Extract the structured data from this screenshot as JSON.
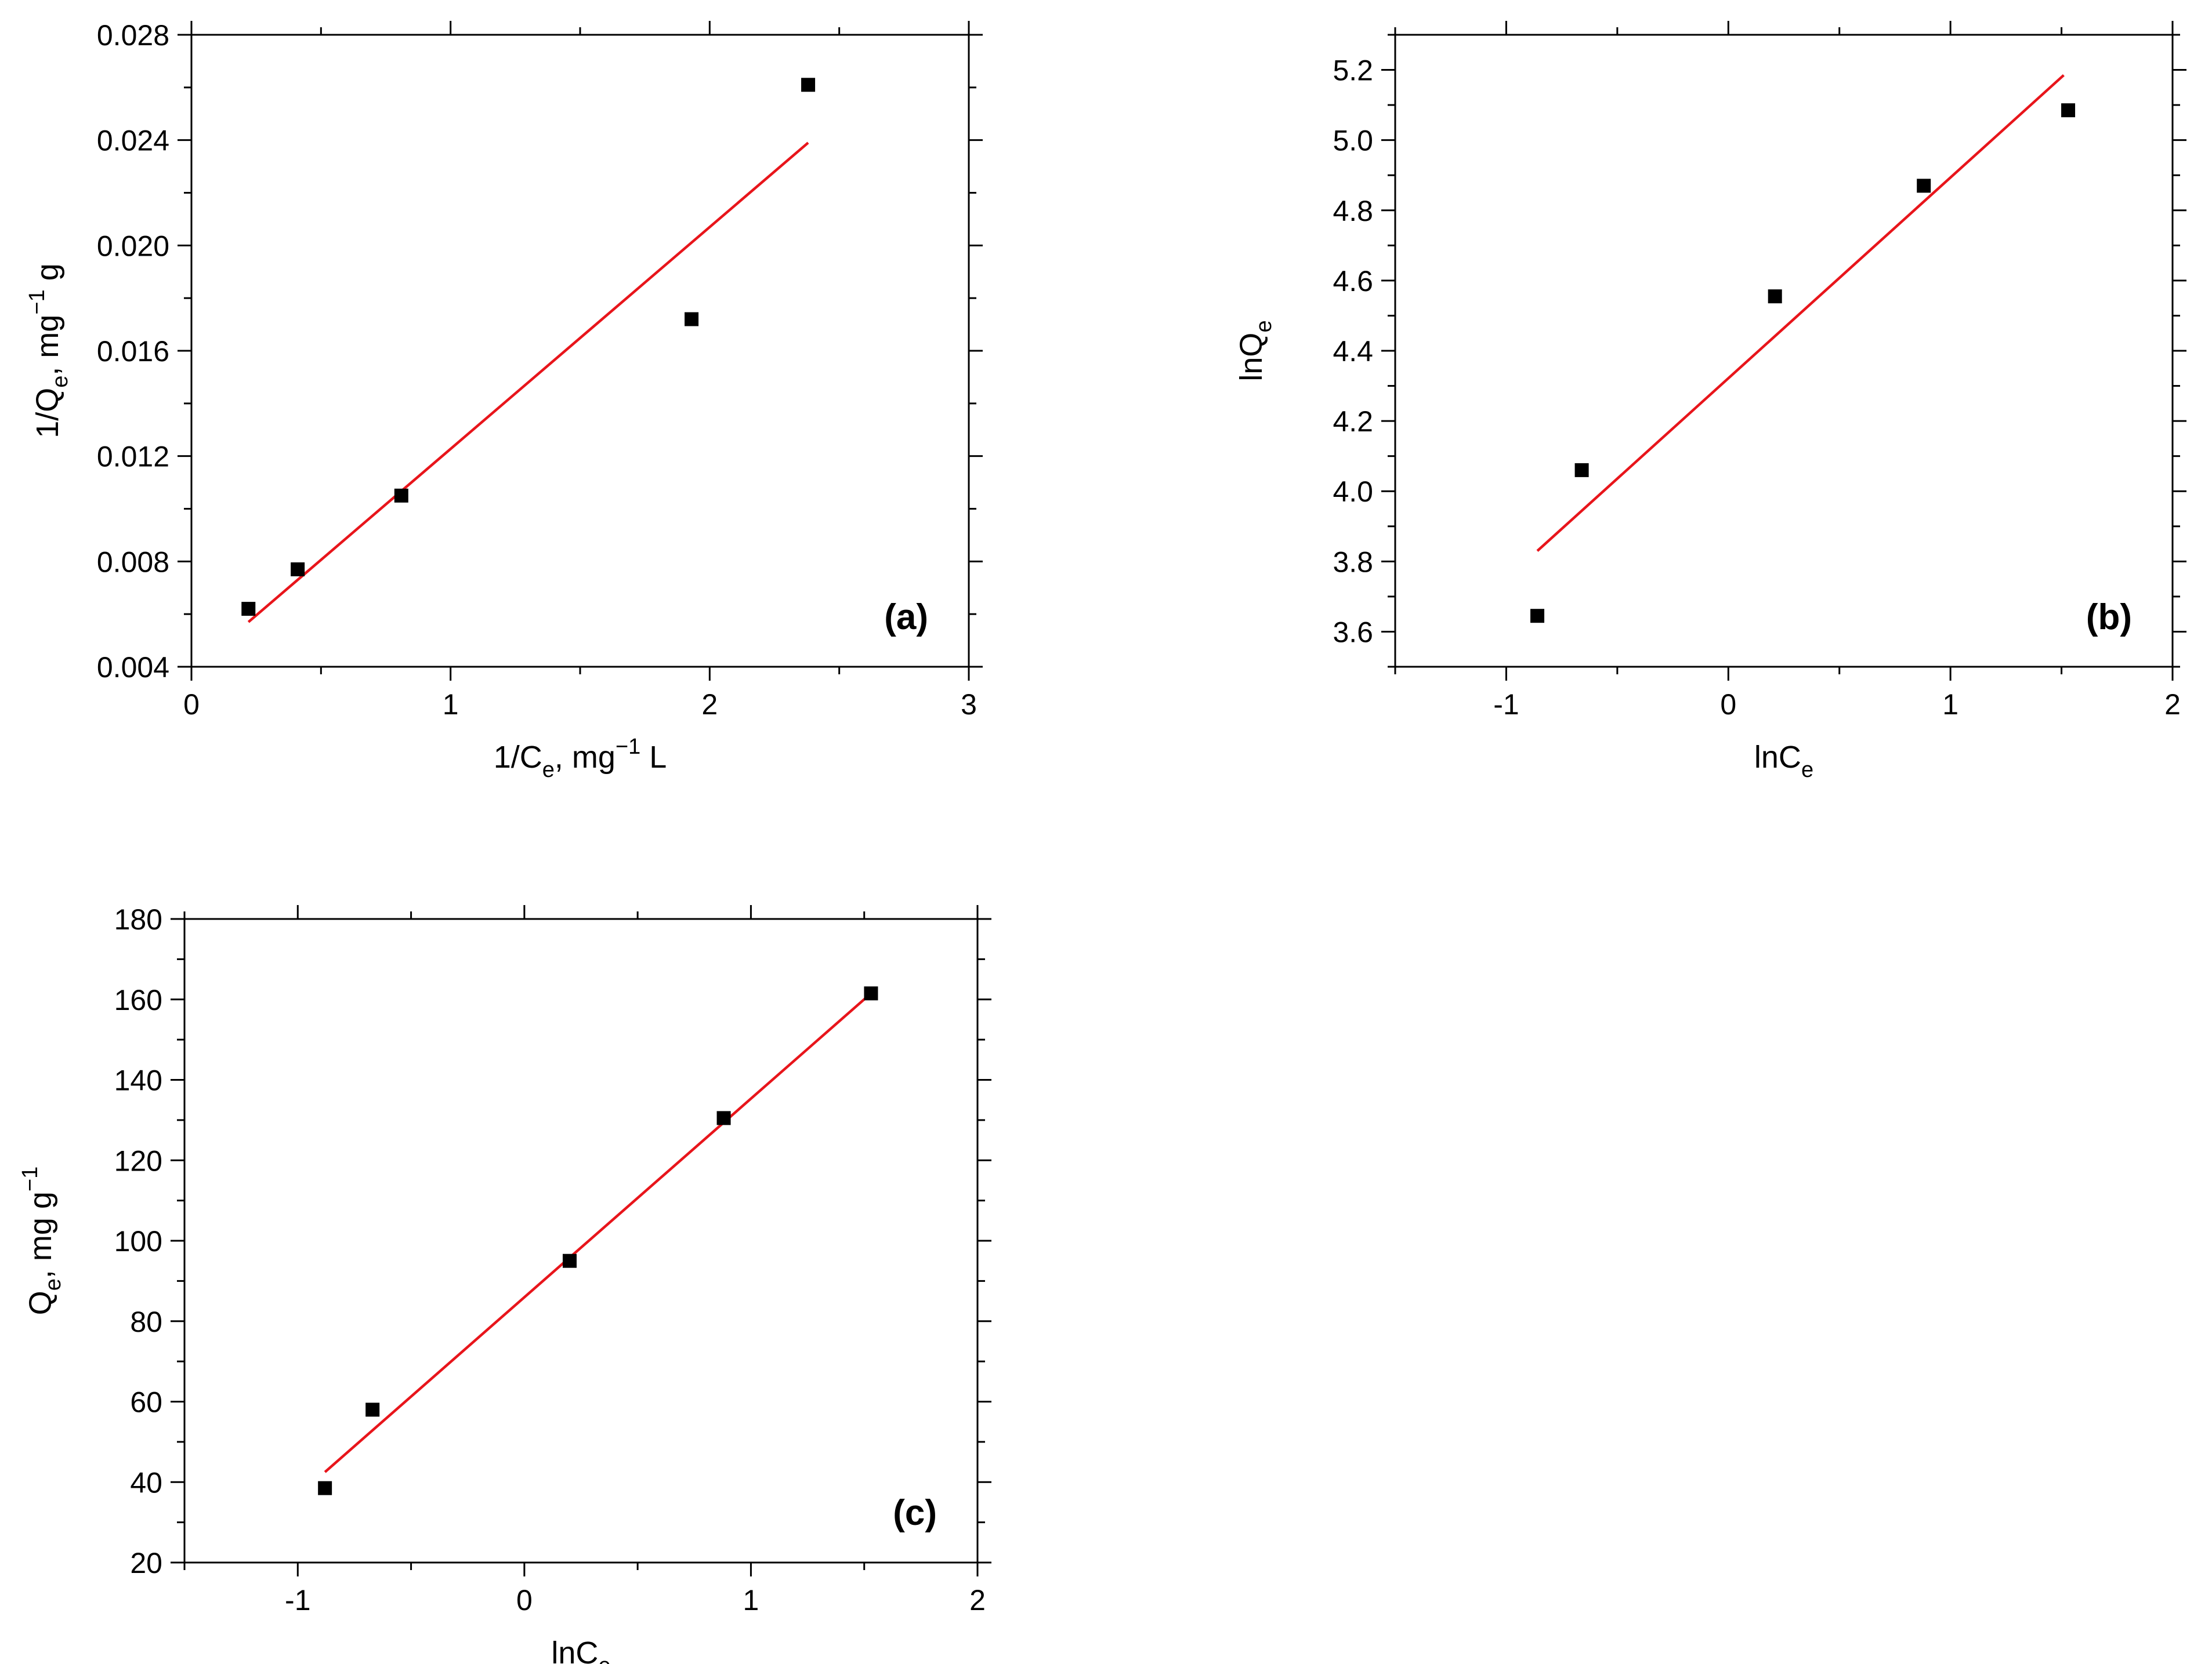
{
  "chart_data": [
    {
      "type": "scatter",
      "panel_label": "(a)",
      "xlabel": {
        "main": "1/C",
        "sub": "e",
        "rest": ", mg",
        "sup": "−1",
        "tail": " L"
      },
      "ylabel": {
        "main": "1/Q",
        "sub": "e",
        "rest": ", mg",
        "sup": "−1",
        "tail": " g"
      },
      "xlim": [
        0,
        3
      ],
      "ylim": [
        0.004,
        0.028
      ],
      "x_ticks": [
        0,
        1,
        2,
        3
      ],
      "x_tick_labels": [
        "0",
        "1",
        "2",
        "3"
      ],
      "y_ticks": [
        0.004,
        0.008,
        0.012,
        0.016,
        0.02,
        0.024,
        0.028
      ],
      "y_tick_labels": [
        "0.004",
        "0.008",
        "0.012",
        "0.016",
        "0.020",
        "0.024",
        "0.028"
      ],
      "x_minor_step": 0.5,
      "y_minor_step": 0.002,
      "grid": false,
      "series": [
        {
          "x": [
            0.22,
            0.41,
            0.81,
            1.93,
            2.38
          ],
          "y": [
            0.0062,
            0.0077,
            0.0105,
            0.0172,
            0.0261
          ],
          "marker": "square",
          "color": "#000000"
        }
      ],
      "fit_line": {
        "x": [
          0.22,
          2.38
        ],
        "y": [
          0.0057,
          0.0239
        ],
        "color": "#e8151b"
      }
    },
    {
      "type": "scatter",
      "panel_label": "(b)",
      "xlabel": {
        "main": "lnC",
        "sub": "e",
        "rest": "",
        "sup": "",
        "tail": ""
      },
      "ylabel": {
        "main": "lnQ",
        "sub": "e",
        "rest": "",
        "sup": "",
        "tail": ""
      },
      "xlim": [
        -1.5,
        2
      ],
      "ylim": [
        3.5,
        5.3
      ],
      "x_ticks": [
        -1,
        0,
        1,
        2
      ],
      "x_tick_labels": [
        "-1",
        "0",
        "1",
        "2"
      ],
      "y_ticks": [
        3.6,
        3.8,
        4.0,
        4.2,
        4.4,
        4.6,
        4.8,
        5.0,
        5.2
      ],
      "y_tick_labels": [
        "3.6",
        "3.8",
        "4.0",
        "4.2",
        "4.4",
        "4.6",
        "4.8",
        "5.0",
        "5.2"
      ],
      "x_minor_step": 0.5,
      "y_minor_step": 0.1,
      "grid": false,
      "series": [
        {
          "x": [
            -0.86,
            -0.66,
            0.21,
            0.88,
            1.53
          ],
          "y": [
            3.645,
            4.06,
            4.555,
            4.87,
            5.085
          ],
          "marker": "square",
          "color": "#000000"
        }
      ],
      "fit_line": {
        "x": [
          -0.86,
          1.51
        ],
        "y": [
          3.83,
          5.185
        ],
        "color": "#e8151b"
      }
    },
    {
      "type": "scatter",
      "panel_label": "(c)",
      "xlabel": {
        "main": "lnC",
        "sub": "e",
        "rest": "",
        "sup": "",
        "tail": ""
      },
      "ylabel": {
        "main": "Q",
        "sub": "e",
        "rest": ", mg g",
        "sup": "−1",
        "tail": ""
      },
      "xlim": [
        -1.5,
        2
      ],
      "ylim": [
        20,
        180
      ],
      "x_ticks": [
        -1,
        0,
        1,
        2
      ],
      "x_tick_labels": [
        "-1",
        "0",
        "1",
        "2"
      ],
      "y_ticks": [
        20,
        40,
        60,
        80,
        100,
        120,
        140,
        160,
        180
      ],
      "y_tick_labels": [
        "20",
        "40",
        "60",
        "80",
        "100",
        "120",
        "140",
        "160",
        "180"
      ],
      "x_minor_step": 0.5,
      "y_minor_step": 10,
      "grid": false,
      "series": [
        {
          "x": [
            -0.88,
            -0.67,
            0.2,
            0.88,
            1.53
          ],
          "y": [
            38.5,
            58,
            95,
            130.5,
            161.5
          ],
          "marker": "square",
          "color": "#000000"
        }
      ],
      "fit_line": {
        "x": [
          -0.88,
          1.53
        ],
        "y": [
          42.5,
          161.5
        ],
        "color": "#e8151b"
      }
    }
  ]
}
